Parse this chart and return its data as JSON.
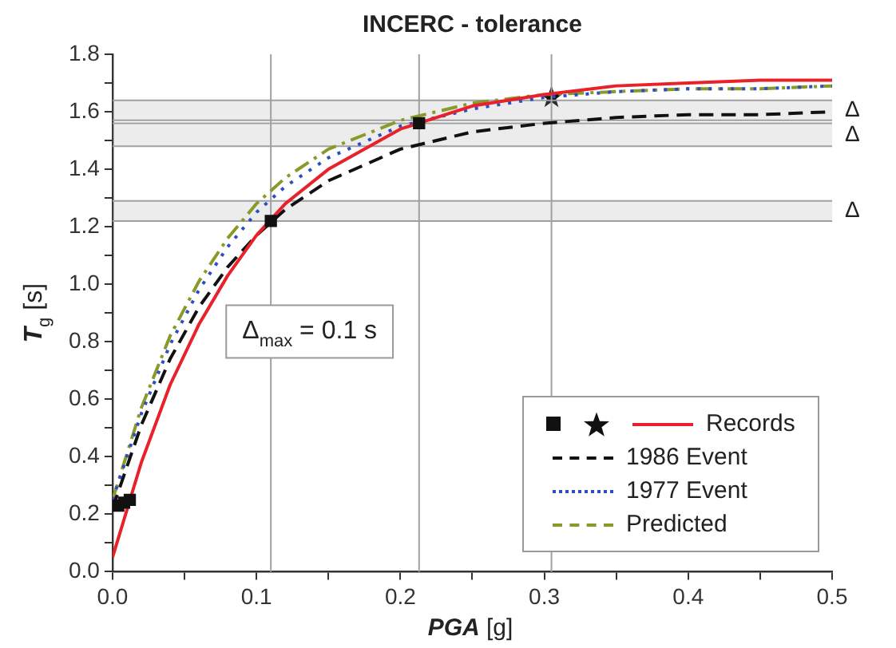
{
  "chart_data": {
    "type": "line",
    "title": "INCERC - tolerance",
    "xlabel": "PGA [g]",
    "ylabel": "T$_{g}$ [s]",
    "x": [
      0,
      0.02,
      0.04,
      0.06,
      0.08,
      0.1,
      0.12,
      0.15,
      0.2,
      0.25,
      0.3,
      0.35,
      0.4,
      0.45,
      0.5
    ],
    "series": [
      {
        "type": "scatter",
        "marker": "square",
        "color": "#111111",
        "x": [
          0.004,
          0.008,
          0.012,
          0.11,
          0.213
        ],
        "values": [
          0.23,
          0.24,
          0.25,
          1.22,
          1.56
        ]
      },
      {
        "type": "scatter",
        "marker": "star",
        "color": "#111111",
        "x": [
          0.305
        ],
        "values": [
          1.65
        ]
      },
      {
        "name": "Records",
        "color": "#e8212a",
        "line_style": "solid",
        "values": [
          0.05,
          0.38,
          0.65,
          0.86,
          1.03,
          1.17,
          1.28,
          1.4,
          1.54,
          1.62,
          1.66,
          1.69,
          1.7,
          1.71,
          1.71
        ]
      },
      {
        "name": "1986 Event",
        "color": "#111111",
        "line_style": "dashed",
        "values": [
          0.22,
          0.51,
          0.74,
          0.92,
          1.06,
          1.17,
          1.26,
          1.36,
          1.47,
          1.53,
          1.56,
          1.58,
          1.59,
          1.59,
          1.6
        ]
      },
      {
        "name": "1977 Event",
        "color": "#2a4fc4",
        "line_style": "dotted",
        "values": [
          0.25,
          0.55,
          0.79,
          0.98,
          1.13,
          1.25,
          1.34,
          1.44,
          1.55,
          1.61,
          1.65,
          1.67,
          1.68,
          1.68,
          1.69
        ]
      },
      {
        "name": "Predicted",
        "color": "#8a9a2a",
        "line_style": "dashdot",
        "values": [
          0.25,
          0.57,
          0.82,
          1.01,
          1.16,
          1.28,
          1.37,
          1.47,
          1.57,
          1.63,
          1.66,
          1.67,
          1.68,
          1.68,
          1.69
        ]
      }
    ],
    "xlim": [
      0,
      0.5
    ],
    "xticks": [
      {
        "value": 0,
        "label": "0.0"
      },
      {
        "value": 0.05,
        "label": null
      },
      0.1,
      {
        "value": 0.15,
        "label": null
      },
      0.2,
      {
        "value": 0.25,
        "label": null
      },
      0.3,
      {
        "value": 0.35,
        "label": null
      },
      0.4,
      {
        "value": 0.45,
        "label": null
      },
      0.5
    ],
    "ylim": [
      0,
      1.8
    ],
    "yticks": [
      {
        "value": 0,
        "label": "0.0"
      },
      {
        "value": 0.1,
        "label": null
      },
      0.2,
      {
        "value": 0.3,
        "label": null
      },
      0.4,
      {
        "value": 0.5,
        "label": null
      },
      0.6,
      {
        "value": 0.7,
        "label": null
      },
      0.8,
      {
        "value": 0.9,
        "label": null
      },
      {
        "value": 1,
        "label": "1.0"
      },
      {
        "value": 1.1,
        "label": null
      },
      1.2,
      {
        "value": 1.3,
        "label": null
      },
      1.4,
      {
        "value": 1.5,
        "label": null
      },
      1.6,
      {
        "value": 1.7,
        "label": null
      },
      1.8
    ],
    "ref_lines": [
      {
        "axis": "x",
        "value": 0.11,
        "color": "#a0a0a0"
      },
      {
        "axis": "x",
        "value": 0.213,
        "color": "#a0a0a0"
      },
      {
        "axis": "x",
        "value": 0.305,
        "color": "#a0a0a0"
      }
    ],
    "bands": [
      {
        "axis": "y",
        "from": 1.48,
        "to": 1.56,
        "label": "Δ",
        "color": "#a0a0a0"
      },
      {
        "axis": "y",
        "from": 1.22,
        "to": 1.29,
        "label": "Δ",
        "color": "#a0a0a0"
      },
      {
        "axis": "y",
        "from": 1.57,
        "to": 1.64,
        "label": "Δ",
        "color": "#a0a0a0"
      }
    ],
    "annotations": [
      "Δ$_{max}$ = 0.1 s"
    ],
    "grid": false,
    "legend": "bottom right"
  }
}
